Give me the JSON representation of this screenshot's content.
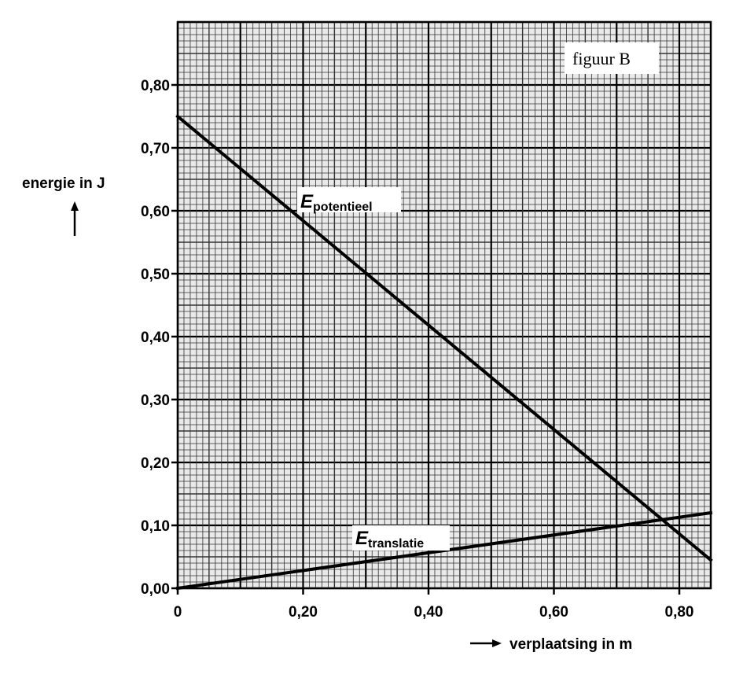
{
  "chart_data": {
    "type": "line",
    "title": "",
    "figure_label": "figuur B",
    "xlabel": "verplaatsing in m",
    "ylabel": "energie in J",
    "xlim": [
      0,
      0.85
    ],
    "ylim": [
      0,
      0.8
    ],
    "grid": true,
    "x_ticks": [
      "0",
      "0,20",
      "0,40",
      "0,60",
      "0,80"
    ],
    "x_tick_values": [
      0,
      0.2,
      0.4,
      0.6,
      0.8
    ],
    "y_ticks": [
      "0,00",
      "0,10",
      "0,20",
      "0,30",
      "0,40",
      "0,50",
      "0,60",
      "0,70",
      "0,80"
    ],
    "y_tick_values": [
      0,
      0.1,
      0.2,
      0.3,
      0.4,
      0.5,
      0.6,
      0.7,
      0.8
    ],
    "series": [
      {
        "symbol": "E",
        "subscript": "potentieel",
        "x": [
          0,
          0.85
        ],
        "y": [
          0.75,
          0.045
        ]
      },
      {
        "symbol": "E",
        "subscript": "translatie",
        "x": [
          0,
          0.85
        ],
        "y": [
          0,
          0.12
        ]
      }
    ]
  }
}
